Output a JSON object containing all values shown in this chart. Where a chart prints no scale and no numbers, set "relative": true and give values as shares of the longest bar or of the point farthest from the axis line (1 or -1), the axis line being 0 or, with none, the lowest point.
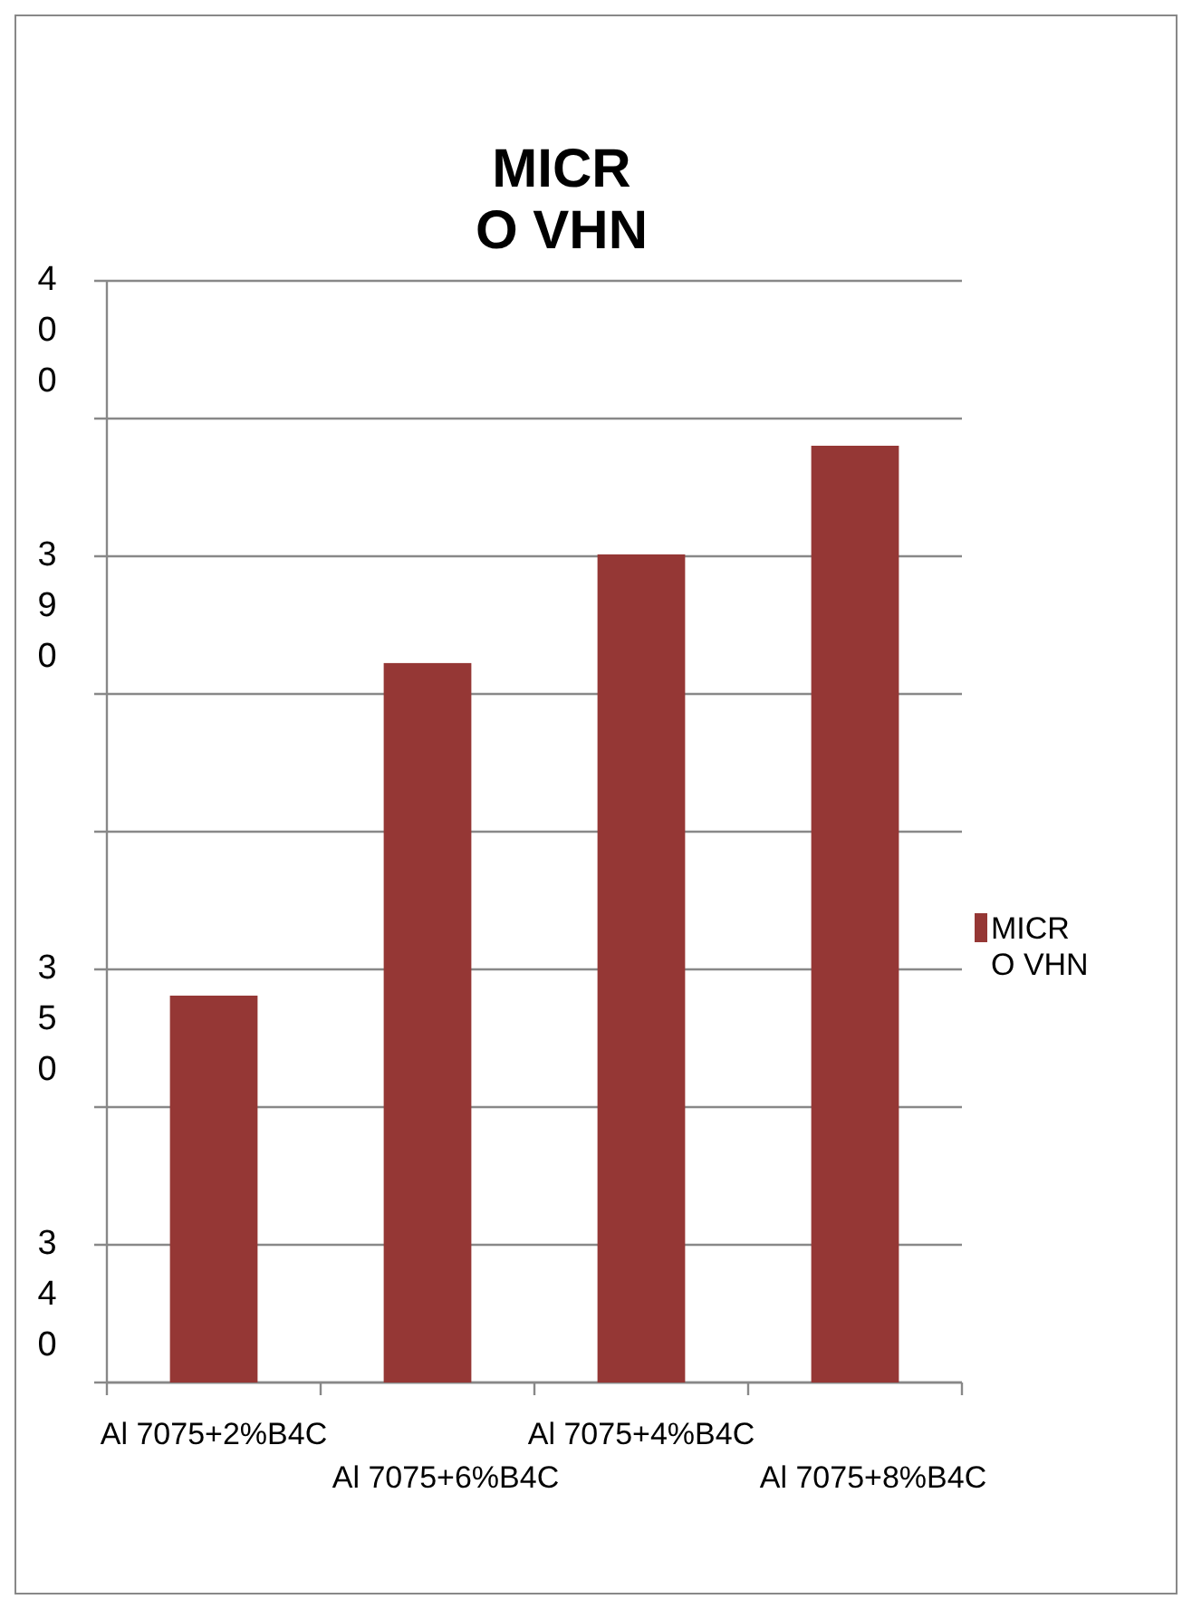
{
  "chart_data": {
    "type": "bar",
    "title": "MICRO VHN",
    "relative": true,
    "categories": [
      "Al 7075+2%B4C",
      "Al 7075+6%B4C",
      "Al 7075+4%B4C",
      "Al 7075+8%B4C"
    ],
    "series": [
      {
        "name": "MICRO VHN",
        "color": "#953735",
        "values": [
          0.413,
          0.768,
          0.884,
          1
        ]
      }
    ],
    "annotations": [
      "400",
      "390",
      "350",
      "340"
    ],
    "grid": "y",
    "legend": "right"
  }
}
